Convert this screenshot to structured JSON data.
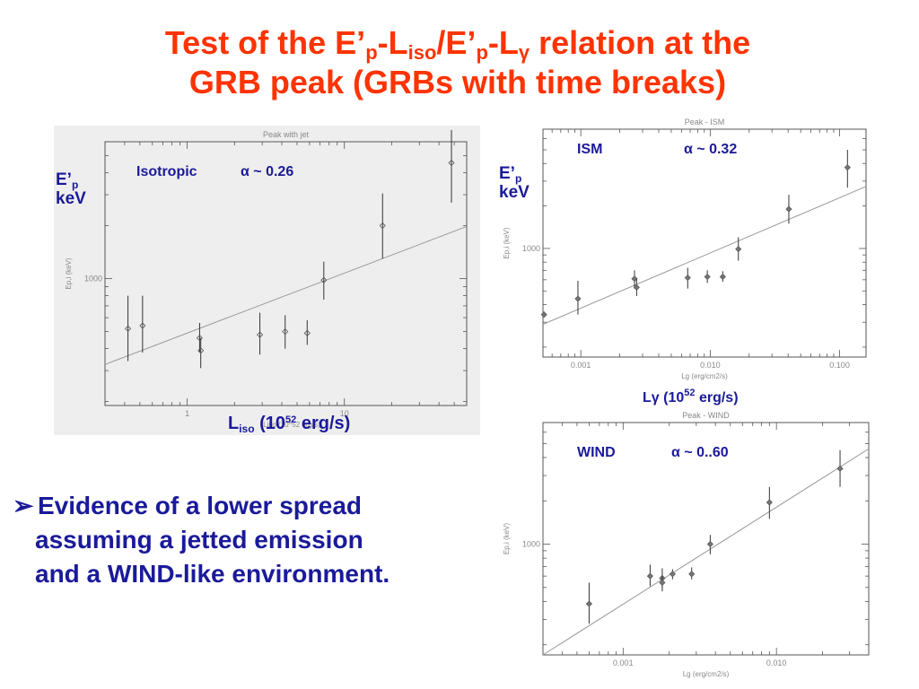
{
  "title": {
    "line1_a": "Test of the E’",
    "sub_p1": "p",
    "line1_b": "-L",
    "sub_iso": "iso",
    "line1_c": "/E’",
    "sub_p2": "p",
    "line1_d": "-L",
    "sub_gamma": "γ",
    "line1_e": " relation at the",
    "line2": "GRB peak (GRBs with time breaks)"
  },
  "labels": {
    "ep_main": "E’",
    "ep_sub": "p",
    "kev": "keV",
    "liso_L": "L",
    "liso_sub": "iso",
    "liso_rest_a": " (10",
    "liso_sup": "52",
    "liso_rest_b": " erg/s)",
    "lg_a": "Lγ (10",
    "lg_sup": "52",
    "lg_b": " erg/s)"
  },
  "bullet": {
    "arrow": "➢",
    "line1": "Evidence of a lower spread",
    "line2": "assuming a jetted emission",
    "line3": "and a  WIND-like environment."
  },
  "chart_data": [
    {
      "type": "scatter",
      "title": "Peak with jet",
      "annotation_name": "Isotropic",
      "annotation_alpha": "α ~ 0.26",
      "ylabel": "Ep,i (keV)",
      "xlabel": "Liso (10^52 erg/s)",
      "xscale": "log",
      "yscale": "log",
      "xlim": [
        0.3,
        60
      ],
      "ylim": [
        190,
        6000
      ],
      "xticks": [
        {
          "v": 1,
          "label": "1"
        },
        {
          "v": 10,
          "label": "10"
        }
      ],
      "yticks": [
        {
          "v": 1000,
          "label": "1000"
        }
      ],
      "background": "#eeeeee",
      "points": [
        {
          "x": 0.42,
          "y": 520,
          "ylo": 340,
          "yhi": 800
        },
        {
          "x": 0.52,
          "y": 540,
          "ylo": 380,
          "yhi": 800
        },
        {
          "x": 1.2,
          "y": 460,
          "ylo": 380,
          "yhi": 560
        },
        {
          "x": 1.22,
          "y": 390,
          "ylo": 310,
          "yhi": 460
        },
        {
          "x": 2.9,
          "y": 480,
          "ylo": 370,
          "yhi": 640
        },
        {
          "x": 4.2,
          "y": 500,
          "ylo": 400,
          "yhi": 620
        },
        {
          "x": 5.8,
          "y": 490,
          "ylo": 420,
          "yhi": 580
        },
        {
          "x": 7.4,
          "y": 980,
          "ylo": 760,
          "yhi": 1250
        },
        {
          "x": 17.5,
          "y": 2000,
          "ylo": 1300,
          "yhi": 3050
        },
        {
          "x": 48,
          "y": 4550,
          "ylo": 2700,
          "yhi": 7000
        }
      ],
      "fit": {
        "x": [
          0.3,
          60
        ],
        "y": [
          325,
          1980
        ]
      }
    },
    {
      "type": "scatter",
      "title": "Peak - ISM",
      "annotation_name": "ISM",
      "annotation_alpha": "α ~ 0.32",
      "ylabel": "Ep,i (keV)",
      "xlabel": "Lg (erg/cm2/s)",
      "xscale": "log",
      "yscale": "log",
      "xlim": [
        0.00051,
        0.16
      ],
      "ylim": [
        170,
        7000
      ],
      "xticks": [
        {
          "v": 0.001,
          "label": "0.001"
        },
        {
          "v": 0.01,
          "label": "0.010"
        },
        {
          "v": 0.1,
          "label": "0.100"
        }
      ],
      "yticks": [
        {
          "v": 1000,
          "label": "1000"
        }
      ],
      "background": "#ffffff",
      "points": [
        {
          "x": 0.00052,
          "y": 340,
          "ylo": 340,
          "yhi": 340
        },
        {
          "x": 0.00095,
          "y": 440,
          "ylo": 340,
          "yhi": 590
        },
        {
          "x": 0.0026,
          "y": 610,
          "ylo": 520,
          "yhi": 700
        },
        {
          "x": 0.0027,
          "y": 530,
          "ylo": 460,
          "yhi": 610
        },
        {
          "x": 0.0067,
          "y": 620,
          "ylo": 520,
          "yhi": 730
        },
        {
          "x": 0.0095,
          "y": 630,
          "ylo": 570,
          "yhi": 700
        },
        {
          "x": 0.0125,
          "y": 630,
          "ylo": 580,
          "yhi": 690
        },
        {
          "x": 0.0165,
          "y": 990,
          "ylo": 820,
          "yhi": 1200
        },
        {
          "x": 0.0405,
          "y": 1900,
          "ylo": 1500,
          "yhi": 2400
        },
        {
          "x": 0.115,
          "y": 3750,
          "ylo": 2700,
          "yhi": 5000
        }
      ],
      "fit": {
        "x": [
          0.00051,
          0.16
        ],
        "y": [
          290,
          2750
        ]
      }
    },
    {
      "type": "scatter",
      "title": "Peak - WIND",
      "annotation_name": "WIND",
      "annotation_alpha": "α ~ 0..60",
      "ylabel": "Ep,i (keV)",
      "xlabel": "Lg (erg/cm2/s)",
      "xscale": "log",
      "yscale": "log",
      "xlim": [
        0.0003,
        0.04
      ],
      "ylim": [
        170,
        7000
      ],
      "xticks": [
        {
          "v": 0.001,
          "label": "0.001"
        },
        {
          "v": 0.01,
          "label": "0.010"
        }
      ],
      "yticks": [
        {
          "v": 1000,
          "label": "1000"
        }
      ],
      "background": "#ffffff",
      "points": [
        {
          "x": 0.0006,
          "y": 385,
          "ylo": 280,
          "yhi": 540
        },
        {
          "x": 0.0015,
          "y": 600,
          "ylo": 510,
          "yhi": 720
        },
        {
          "x": 0.0018,
          "y": 580,
          "ylo": 500,
          "yhi": 680
        },
        {
          "x": 0.0018,
          "y": 540,
          "ylo": 470,
          "yhi": 620
        },
        {
          "x": 0.0021,
          "y": 620,
          "ylo": 570,
          "yhi": 670
        },
        {
          "x": 0.0028,
          "y": 620,
          "ylo": 570,
          "yhi": 690
        },
        {
          "x": 0.0037,
          "y": 1000,
          "ylo": 850,
          "yhi": 1160
        },
        {
          "x": 0.009,
          "y": 1950,
          "ylo": 1500,
          "yhi": 2500
        },
        {
          "x": 0.026,
          "y": 3350,
          "ylo": 2500,
          "yhi": 4500
        }
      ],
      "fit": {
        "x": [
          0.0003,
          0.04
        ],
        "y": [
          170,
          4600
        ]
      }
    }
  ]
}
